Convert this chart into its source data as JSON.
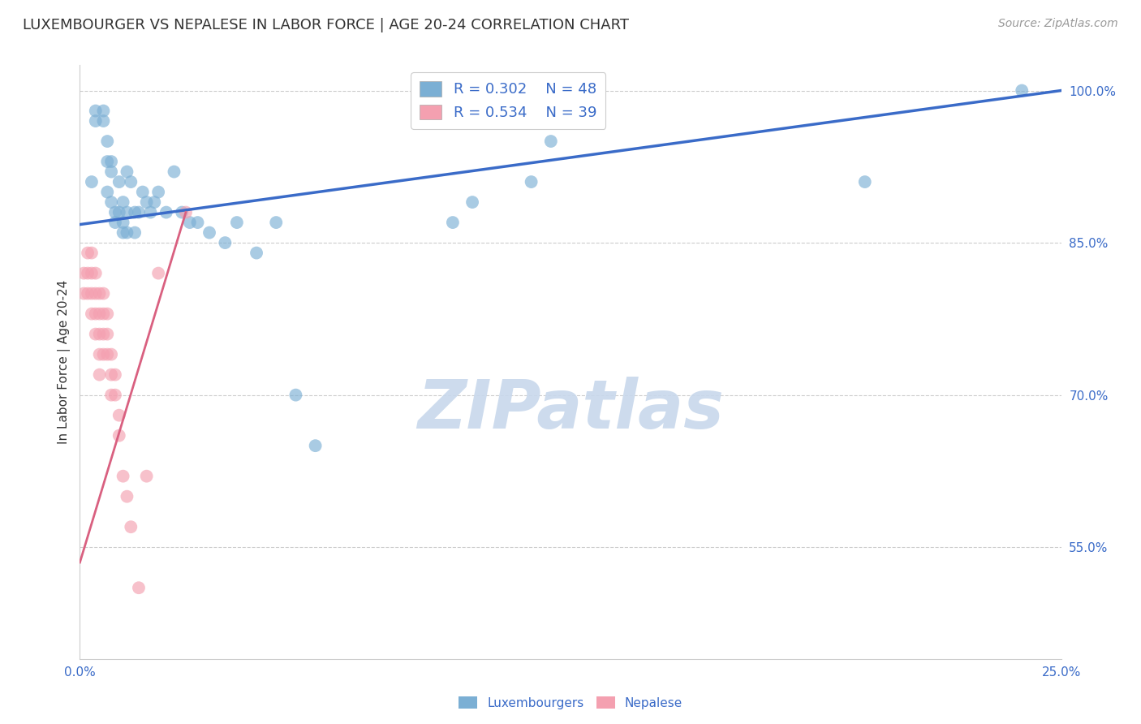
{
  "title": "LUXEMBOURGER VS NEPALESE IN LABOR FORCE | AGE 20-24 CORRELATION CHART",
  "source": "Source: ZipAtlas.com",
  "ylabel": "In Labor Force | Age 20-24",
  "xlim": [
    0.0,
    0.25
  ],
  "ylim": [
    0.44,
    1.025
  ],
  "yticks": [
    0.55,
    0.7,
    0.85,
    1.0
  ],
  "ytick_labels": [
    "55.0%",
    "70.0%",
    "85.0%",
    "100.0%"
  ],
  "watermark": "ZIPatlas",
  "legend_blue_r": "0.302",
  "legend_blue_n": "48",
  "legend_pink_r": "0.534",
  "legend_pink_n": "39",
  "blue_color": "#7BAFD4",
  "pink_color": "#F4A0B0",
  "line_blue_color": "#3A6BC8",
  "line_pink_color": "#D96080",
  "blue_scatter_x": [
    0.003,
    0.004,
    0.004,
    0.006,
    0.006,
    0.007,
    0.007,
    0.007,
    0.008,
    0.008,
    0.008,
    0.009,
    0.009,
    0.01,
    0.01,
    0.011,
    0.011,
    0.011,
    0.012,
    0.012,
    0.012,
    0.013,
    0.014,
    0.014,
    0.015,
    0.016,
    0.017,
    0.018,
    0.019,
    0.02,
    0.022,
    0.024,
    0.026,
    0.028,
    0.03,
    0.033,
    0.037,
    0.04,
    0.045,
    0.05,
    0.055,
    0.06,
    0.095,
    0.1,
    0.115,
    0.12,
    0.2,
    0.24
  ],
  "blue_scatter_y": [
    0.91,
    0.98,
    0.97,
    0.98,
    0.97,
    0.95,
    0.93,
    0.9,
    0.92,
    0.89,
    0.93,
    0.88,
    0.87,
    0.91,
    0.88,
    0.89,
    0.87,
    0.86,
    0.92,
    0.88,
    0.86,
    0.91,
    0.88,
    0.86,
    0.88,
    0.9,
    0.89,
    0.88,
    0.89,
    0.9,
    0.88,
    0.92,
    0.88,
    0.87,
    0.87,
    0.86,
    0.85,
    0.87,
    0.84,
    0.87,
    0.7,
    0.65,
    0.87,
    0.89,
    0.91,
    0.95,
    0.91,
    1.0
  ],
  "pink_scatter_x": [
    0.001,
    0.001,
    0.002,
    0.002,
    0.002,
    0.003,
    0.003,
    0.003,
    0.003,
    0.004,
    0.004,
    0.004,
    0.004,
    0.005,
    0.005,
    0.005,
    0.005,
    0.005,
    0.006,
    0.006,
    0.006,
    0.006,
    0.007,
    0.007,
    0.007,
    0.008,
    0.008,
    0.008,
    0.009,
    0.009,
    0.01,
    0.01,
    0.011,
    0.012,
    0.013,
    0.015,
    0.017,
    0.02,
    0.027
  ],
  "pink_scatter_y": [
    0.82,
    0.8,
    0.84,
    0.82,
    0.8,
    0.84,
    0.82,
    0.8,
    0.78,
    0.82,
    0.8,
    0.78,
    0.76,
    0.8,
    0.78,
    0.76,
    0.74,
    0.72,
    0.8,
    0.78,
    0.76,
    0.74,
    0.78,
    0.76,
    0.74,
    0.74,
    0.72,
    0.7,
    0.72,
    0.7,
    0.68,
    0.66,
    0.62,
    0.6,
    0.57,
    0.51,
    0.62,
    0.82,
    0.88
  ],
  "blue_line_x": [
    0.0,
    0.25
  ],
  "blue_line_y": [
    0.868,
    1.0
  ],
  "pink_line_x": [
    0.0,
    0.027
  ],
  "pink_line_y": [
    0.535,
    0.88
  ],
  "marker_size": 130,
  "title_fontsize": 13,
  "label_fontsize": 11,
  "tick_fontsize": 11,
  "legend_fontsize": 13,
  "watermark_fontsize": 60,
  "source_fontsize": 10,
  "background_color": "#FFFFFF",
  "grid_color": "#CCCCCC",
  "tick_color": "#3A6BC8",
  "title_color": "#333333"
}
